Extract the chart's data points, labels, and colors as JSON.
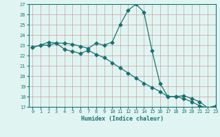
{
  "xlabel": "Humidex (Indice chaleur)",
  "background_color": "#e0f5f2",
  "grid_color": "#c8a0a0",
  "line_color": "#1a7070",
  "x_values": [
    0,
    1,
    2,
    3,
    4,
    5,
    6,
    7,
    8,
    9,
    10,
    11,
    12,
    13,
    14,
    15,
    16,
    17,
    18,
    19,
    20,
    21,
    22,
    23
  ],
  "y_curve1": [
    22.8,
    23.0,
    23.3,
    23.2,
    23.2,
    23.1,
    22.9,
    22.7,
    23.2,
    23.0,
    23.3,
    25.0,
    26.4,
    27.0,
    26.2,
    22.5,
    19.3,
    18.0,
    18.0,
    18.1,
    17.8,
    17.5,
    16.9,
    17.1
  ],
  "y_curve2": [
    22.8,
    23.0,
    23.0,
    23.2,
    22.6,
    22.4,
    22.2,
    22.5,
    22.1,
    21.8,
    21.3,
    20.8,
    20.3,
    19.8,
    19.3,
    18.9,
    18.5,
    18.0,
    18.0,
    17.8,
    17.5,
    17.1,
    16.9,
    17.1
  ],
  "ylim": [
    17,
    27
  ],
  "xlim": [
    -0.5,
    23
  ],
  "yticks": [
    17,
    18,
    19,
    20,
    21,
    22,
    23,
    24,
    25,
    26,
    27
  ],
  "xticks": [
    0,
    1,
    2,
    3,
    4,
    5,
    6,
    7,
    8,
    9,
    10,
    11,
    12,
    13,
    14,
    15,
    16,
    17,
    18,
    19,
    20,
    21,
    22,
    23
  ],
  "xtick_labels": [
    "0",
    "1",
    "2",
    "3",
    "4",
    "5",
    "6",
    "7",
    "8",
    "9",
    "10",
    "11",
    "12",
    "13",
    "14",
    "15",
    "16",
    "17",
    "18",
    "19",
    "20",
    "21",
    "22",
    "23"
  ],
  "marker": "D",
  "marker_size": 2.5,
  "linewidth": 0.9
}
